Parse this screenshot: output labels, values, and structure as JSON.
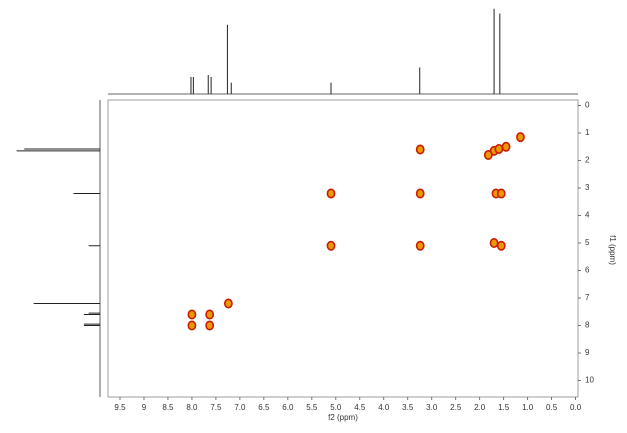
{
  "chart_data": {
    "type": "scatter",
    "x_label": "f2 (ppm)",
    "y_label": "f1 (ppm)",
    "xlim": [
      9.75,
      -0.05
    ],
    "ylim": [
      10.6,
      -0.2
    ],
    "xticks": [
      {
        "value": 9.5,
        "label": "9.5"
      },
      9,
      {
        "value": 8.5,
        "label": "8.5"
      },
      {
        "value": 8,
        "label": "8.0"
      },
      {
        "value": 7.5,
        "label": "7.5"
      },
      {
        "value": 7,
        "label": "7.0"
      },
      {
        "value": 6.5,
        "label": "6.5"
      },
      {
        "value": 6,
        "label": "6.0"
      },
      {
        "value": 5.5,
        "label": "5.5"
      },
      {
        "value": 5,
        "label": "5.0"
      },
      {
        "value": 4.5,
        "label": "4.5"
      },
      {
        "value": 4,
        "label": "4.0"
      },
      {
        "value": 3.5,
        "label": "3.5"
      },
      {
        "value": 3,
        "label": "3.0"
      },
      {
        "value": 2.5,
        "label": "2.5"
      },
      {
        "value": 2,
        "label": "2.0"
      },
      {
        "value": 1.5,
        "label": "1.5"
      },
      {
        "value": 1,
        "label": "1.0"
      },
      {
        "value": 0.5,
        "label": "0.5"
      },
      {
        "value": 0,
        "label": "0.0"
      }
    ],
    "yticks": [
      0,
      1,
      2,
      3,
      4,
      5,
      6,
      7,
      8,
      9,
      10
    ],
    "color": "#e89a00",
    "edge_color": "#cc1a00",
    "x": [
      8.0,
      8.0,
      7.63,
      7.63,
      7.24,
      5.1,
      5.1,
      3.24,
      3.24,
      3.24,
      1.7,
      1.6,
      1.66,
      1.55,
      1.7,
      1.55,
      1.45,
      1.15,
      1.82
    ],
    "values": [
      7.6,
      8.0,
      7.6,
      8.0,
      7.2,
      3.2,
      5.1,
      3.2,
      5.1,
      1.6,
      1.65,
      1.58,
      3.2,
      3.2,
      5.0,
      5.1,
      1.5,
      1.15,
      1.8
    ],
    "projection_f2": {
      "x": [
        8.02,
        7.97,
        7.66,
        7.6,
        7.26,
        7.18,
        5.1,
        3.25,
        1.7,
        1.58
      ],
      "values": [
        18,
        18,
        20,
        18,
        73,
        12,
        12,
        28,
        90,
        85
      ],
      "lim": [
        0,
        95
      ]
    },
    "projection_f1": {
      "x": [
        1.65,
        1.58,
        3.2,
        5.1,
        7.2,
        7.55,
        7.6,
        7.95,
        8.0
      ],
      "values": [
        88,
        80,
        28,
        12,
        70,
        12,
        17,
        17,
        17
      ],
      "lim": [
        0,
        95
      ]
    }
  }
}
